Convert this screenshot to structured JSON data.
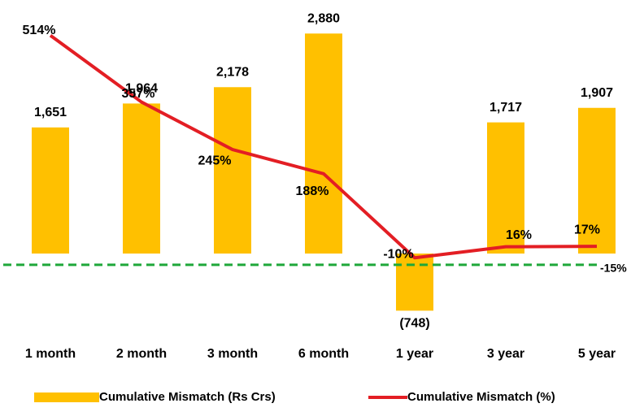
{
  "chart_data": {
    "type": "bar_line",
    "categories": [
      "1 month",
      "2 month",
      "3 month",
      "6 month",
      "1 year",
      "3 year",
      "5 year"
    ],
    "series": [
      {
        "name": "Cumulative Mismatch (Rs Crs)",
        "type": "bar",
        "color": "#ffc000",
        "values": [
          1651,
          1964,
          2178,
          2880,
          -748,
          1717,
          1907
        ],
        "value_labels": [
          "1,651",
          "1,964",
          "2,178",
          "2,880",
          "(748)",
          "1,717",
          "1,907"
        ]
      },
      {
        "name": "Cumulative Mismatch (%)",
        "type": "line",
        "axis": "y2",
        "color": "#e31e24",
        "values": [
          514,
          357,
          245,
          188,
          -10,
          16,
          17
        ],
        "value_labels": [
          "514%",
          "357%",
          "245%",
          "188%",
          "-10%",
          "16%",
          "17%"
        ]
      }
    ],
    "ylim": [
      -1000,
      3000
    ],
    "y2lim": [
      -180,
      540
    ],
    "reference_line": {
      "value": -15,
      "label": "-15%",
      "axis": "y2",
      "color": "#1fa83a"
    },
    "legend": "bottom"
  }
}
